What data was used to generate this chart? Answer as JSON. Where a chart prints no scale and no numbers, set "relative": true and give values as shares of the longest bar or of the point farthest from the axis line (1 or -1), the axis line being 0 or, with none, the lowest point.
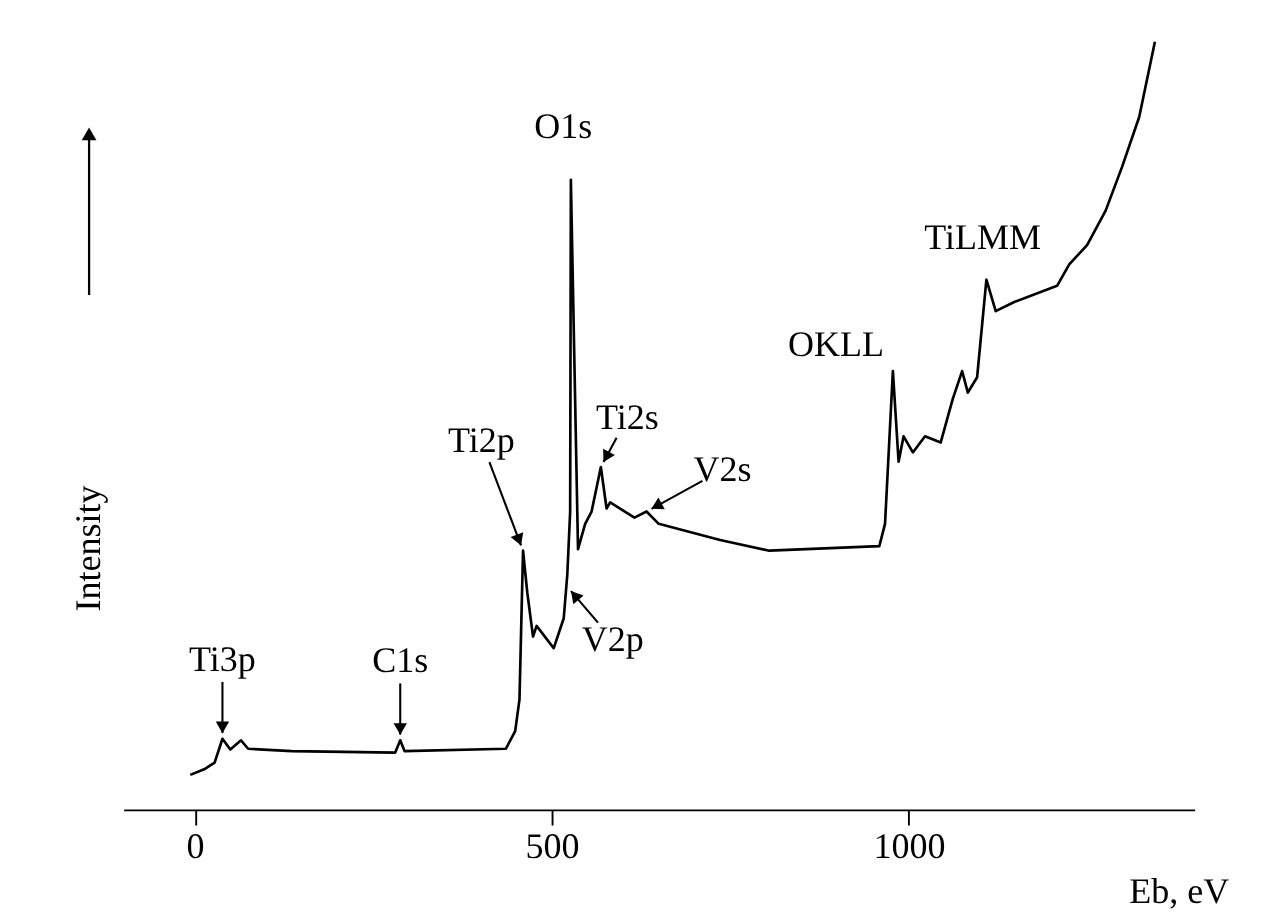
{
  "chart_data": {
    "type": "line",
    "relative": true,
    "xlabel": "Eb, eV",
    "ylabel": "Intensity",
    "xlim": [
      -100,
      1400
    ],
    "xticks": [
      0,
      500,
      1000
    ],
    "grid": false,
    "line_style": "solid",
    "series": [
      {
        "color": "#000000",
        "x": [
          -6,
          15,
          28,
          39,
          50,
          65,
          75,
          136,
          281,
          288,
          294,
          436,
          449,
          455,
          460,
          466,
          474,
          479,
          503,
          517,
          522,
          526,
          527,
          537,
          547,
          556,
          569,
          577,
          582,
          616,
          633,
          650,
          736,
          805,
          959,
          967,
          978,
          986,
          993,
          1006,
          1023,
          1045,
          1062,
          1075,
          1083,
          1096,
          1109,
          1122,
          1148,
          1208,
          1225,
          1250,
          1276,
          1299,
          1323,
          1345
        ],
        "values": [
          0.045,
          0.053,
          0.061,
          0.092,
          0.078,
          0.09,
          0.079,
          0.076,
          0.074,
          0.09,
          0.076,
          0.079,
          0.102,
          0.143,
          0.337,
          0.282,
          0.225,
          0.239,
          0.21,
          0.249,
          0.306,
          0.388,
          0.82,
          0.339,
          0.372,
          0.388,
          0.446,
          0.392,
          0.4,
          0.38,
          0.388,
          0.372,
          0.351,
          0.337,
          0.343,
          0.372,
          0.571,
          0.453,
          0.486,
          0.465,
          0.486,
          0.478,
          0.535,
          0.571,
          0.543,
          0.563,
          0.69,
          0.649,
          0.661,
          0.682,
          0.71,
          0.735,
          0.78,
          0.837,
          0.902,
          1.0
        ]
      }
    ],
    "annotations": [
      {
        "text": "Ti3p",
        "x": 39,
        "y": 0.092
      },
      {
        "text": "C1s",
        "x": 288,
        "y": 0.09
      },
      {
        "text": "Ti2p",
        "x": 460,
        "y": 0.337
      },
      {
        "text": "O1s",
        "x": 527,
        "y": 0.82
      },
      {
        "text": "Ti2s",
        "x": 569,
        "y": 0.446
      },
      {
        "text": "V2p",
        "x": 522,
        "y": 0.29
      },
      {
        "text": "V2s",
        "x": 633,
        "y": 0.388
      },
      {
        "text": "OKLL",
        "x": 978,
        "y": 0.571
      },
      {
        "text": "TiLMM",
        "x": 1109,
        "y": 0.69
      }
    ]
  }
}
